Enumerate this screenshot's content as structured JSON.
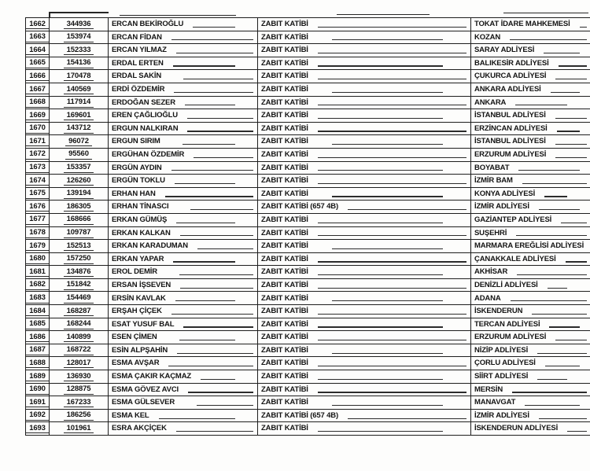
{
  "table": {
    "rows": [
      {
        "no": "1662",
        "id": "344936",
        "name": "ERCAN BEKİROĞLU",
        "title": "ZABIT KATİBİ",
        "court": "TOKAT İDARE MAHKEMESİ"
      },
      {
        "no": "1663",
        "id": "153974",
        "name": "ERCAN FİDAN",
        "title": "ZABIT KATİBİ",
        "court": "KOZAN"
      },
      {
        "no": "1664",
        "id": "152333",
        "name": "ERCAN YILMAZ",
        "title": "ZABIT KATİBİ",
        "court": "SARAY ADLİYESİ"
      },
      {
        "no": "1665",
        "id": "154136",
        "name": "ERDAL ERTEN",
        "title": "ZABIT KATİBİ",
        "court": "BALIKESİR ADLİYESİ"
      },
      {
        "no": "1666",
        "id": "170478",
        "name": "ERDAL SAKİN",
        "title": "ZABIT KATİBİ",
        "court": "ÇUKURCA ADLİYESİ"
      },
      {
        "no": "1667",
        "id": "140569",
        "name": "ERDİ ÖZDEMİR",
        "title": "ZABIT KATİBİ",
        "court": "ANKARA ADLİYESİ"
      },
      {
        "no": "1668",
        "id": "117914",
        "name": "ERDOĞAN SEZER",
        "title": "ZABIT KATİBİ",
        "court": "ANKARA"
      },
      {
        "no": "1669",
        "id": "169601",
        "name": "EREN ÇAĞLIOĞLU",
        "title": "ZABIT KATİBİ",
        "court": "İSTANBUL ADLİYESİ"
      },
      {
        "no": "1670",
        "id": "143712",
        "name": "ERGUN NALKIRAN",
        "title": "ZABIT KATİBİ",
        "court": "ERZİNCAN ADLİYESİ"
      },
      {
        "no": "1671",
        "id": "96072",
        "name": "ERGUN SIRIM",
        "title": "ZABIT KATİBİ",
        "court": "İSTANBUL ADLİYESİ"
      },
      {
        "no": "1672",
        "id": "95560",
        "name": "ERGÜHAN ÖZDEMİR",
        "title": "ZABIT KATİBİ",
        "court": "ERZURUM ADLİYESİ"
      },
      {
        "no": "1673",
        "id": "153357",
        "name": "ERGÜN AYDIN",
        "title": "ZABIT KATİBİ",
        "court": "BOYABAT"
      },
      {
        "no": "1674",
        "id": "126260",
        "name": "ERGÜN TOKLU",
        "title": "ZABIT KATİBİ",
        "court": "İZMİR BAM"
      },
      {
        "no": "1675",
        "id": "139194",
        "name": "ERHAN HAN",
        "title": "ZABIT KATİBİ",
        "court": "KONYA ADLİYESİ"
      },
      {
        "no": "1676",
        "id": "186305",
        "name": "ERHAN TİNASCI",
        "title": "ZABIT KATİBİ (657 4B)",
        "court": "İZMİR ADLİYESİ"
      },
      {
        "no": "1677",
        "id": "168666",
        "name": "ERKAN GÜMÜŞ",
        "title": "ZABIT KATİBİ",
        "court": "GAZİANTEP ADLİYESİ"
      },
      {
        "no": "1678",
        "id": "109787",
        "name": "ERKAN KALKAN",
        "title": "ZABIT KATİBİ",
        "court": "SUŞEHRİ"
      },
      {
        "no": "1679",
        "id": "152513",
        "name": "ERKAN KARADUMAN",
        "title": "ZABIT KATİBİ",
        "court": "MARMARA EREĞLİSİ ADLİYESİ"
      },
      {
        "no": "1680",
        "id": "157250",
        "name": "ERKAN YAPAR",
        "title": "ZABIT KATİBİ",
        "court": "ÇANAKKALE ADLİYESİ"
      },
      {
        "no": "1681",
        "id": "134876",
        "name": "EROL DEMİR",
        "title": "ZABIT KATİBİ",
        "court": "AKHİSAR"
      },
      {
        "no": "1682",
        "id": "151842",
        "name": "ERSAN İŞSEVEN",
        "title": "ZABIT KATİBİ",
        "court": "DENİZLİ ADLİYESİ"
      },
      {
        "no": "1683",
        "id": "154469",
        "name": "ERSİN KAVLAK",
        "title": "ZABIT KATİBİ",
        "court": "ADANA"
      },
      {
        "no": "1684",
        "id": "168287",
        "name": "ERŞAH ÇİÇEK",
        "title": "ZABIT KATİBİ",
        "court": "İSKENDERUN"
      },
      {
        "no": "1685",
        "id": "168244",
        "name": "ESAT YUSUF BAL",
        "title": "ZABIT KATİBİ",
        "court": "TERCAN ADLİYESİ"
      },
      {
        "no": "1686",
        "id": "140899",
        "name": "ESEN ÇİMEN",
        "title": "ZABIT KATİBİ",
        "court": "ERZURUM ADLİYESİ"
      },
      {
        "no": "1687",
        "id": "168722",
        "name": "ESİN ALPŞAHİN",
        "title": "ZABIT KATİBİ",
        "court": "NİZİP ADLİYESİ"
      },
      {
        "no": "1688",
        "id": "128017",
        "name": "ESMA AVŞAR",
        "title": "ZABIT KATİBİ",
        "court": "ÇORLU ADLİYESİ"
      },
      {
        "no": "1689",
        "id": "136930",
        "name": "ESMA ÇAKIR KAÇMAZ",
        "title": "ZABIT KATİBİ",
        "court": "SİİRT ADLİYESİ"
      },
      {
        "no": "1690",
        "id": "128875",
        "name": "ESMA GÖVEZ AVCI",
        "title": "ZABIT KATİBİ",
        "court": "MERSİN"
      },
      {
        "no": "1691",
        "id": "167233",
        "name": "ESMA GÜLSEVER",
        "title": "ZABIT KATİBİ",
        "court": "MANAVGAT"
      },
      {
        "no": "1692",
        "id": "186256",
        "name": "ESMA KEL",
        "title": "ZABIT KATİBİ (657 4B)",
        "court": "İZMİR ADLİYESİ"
      },
      {
        "no": "1693",
        "id": "101961",
        "name": "ESRA AKÇİÇEK",
        "title": "ZABIT KATİBİ",
        "court": "İSKENDERUN ADLİYESİ"
      }
    ]
  },
  "colors": {
    "ink": "#1e1e1e",
    "paper": "#fdfdfc"
  }
}
